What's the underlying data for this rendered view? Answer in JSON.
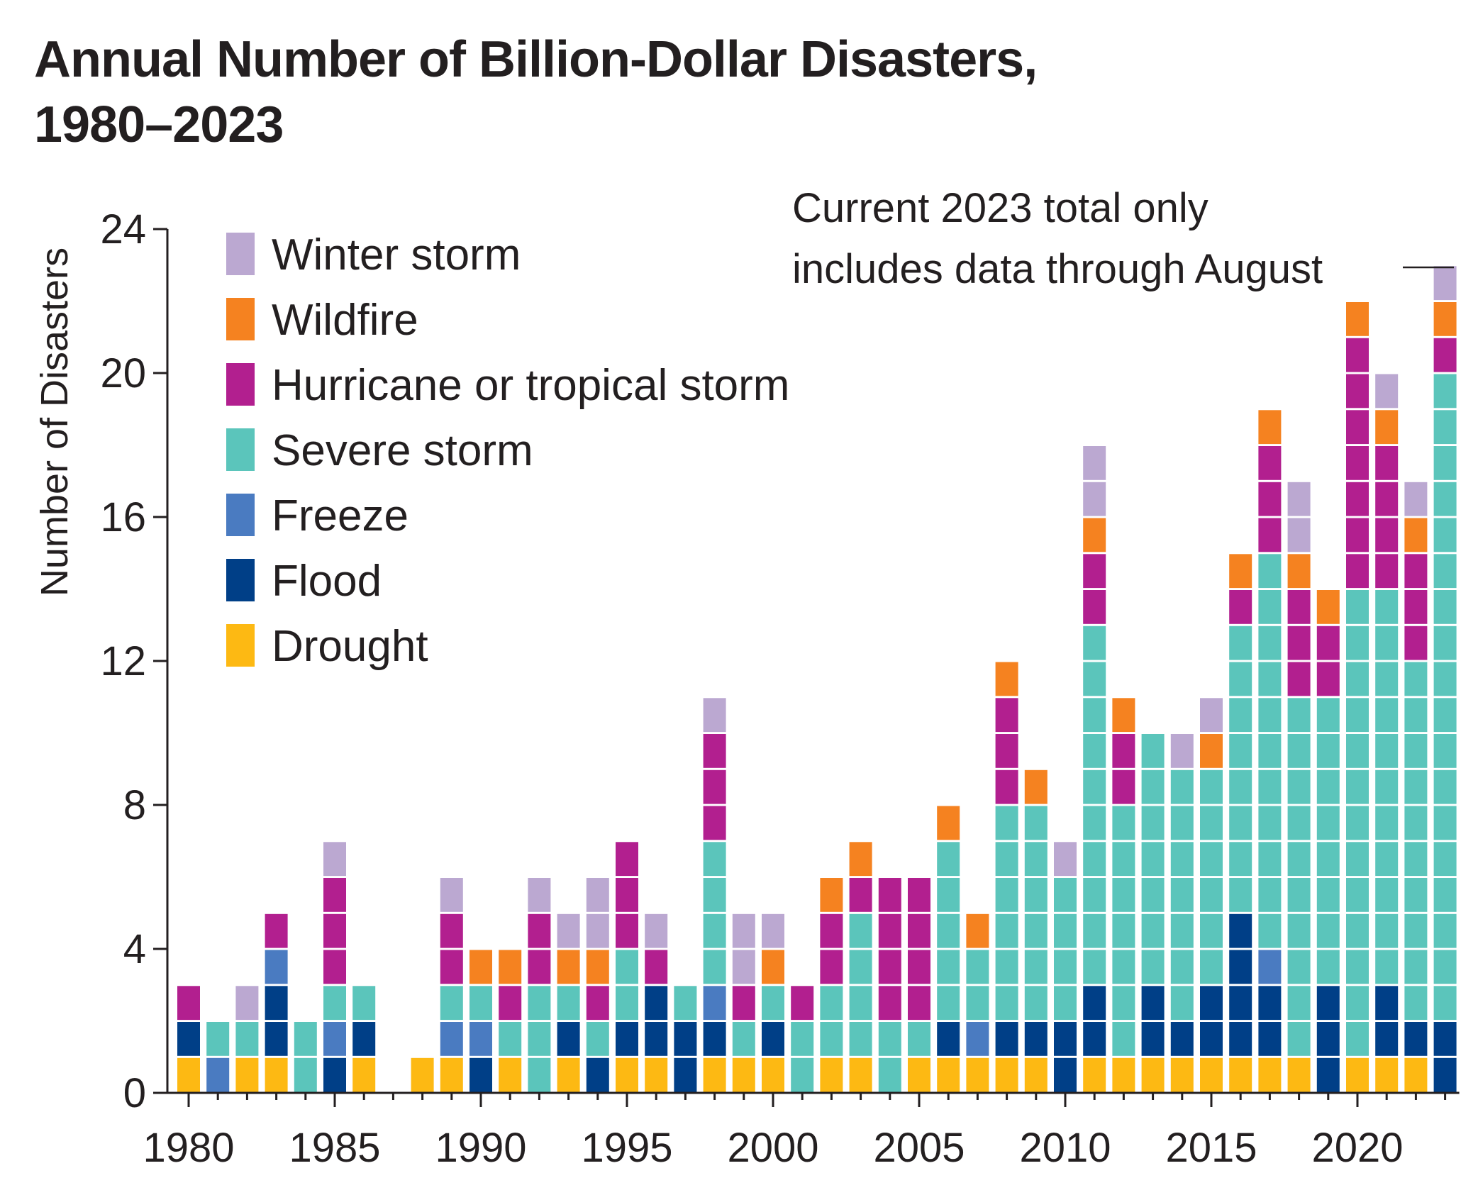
{
  "chart_data": {
    "type": "bar",
    "stacked": true,
    "title": "Annual Number of Billion-Dollar Disasters,\n1980–2023",
    "ylabel": "Number of Disasters",
    "xlabel": "",
    "ylim": [
      0,
      24
    ],
    "yticks": [
      "0",
      "4",
      "8",
      "12",
      "16",
      "20",
      "24"
    ],
    "xticks": [
      "1980",
      "1985",
      "1990",
      "1995",
      "2000",
      "2005",
      "2010",
      "2015",
      "2020"
    ],
    "legend_position": "top-left",
    "annotation": "Current 2023 total only\nincludes data through August",
    "categories": [
      1980,
      1981,
      1982,
      1983,
      1984,
      1985,
      1986,
      1987,
      1988,
      1989,
      1990,
      1991,
      1992,
      1993,
      1994,
      1995,
      1996,
      1997,
      1998,
      1999,
      2000,
      2001,
      2002,
      2003,
      2004,
      2005,
      2006,
      2007,
      2008,
      2009,
      2010,
      2011,
      2012,
      2013,
      2014,
      2015,
      2016,
      2017,
      2018,
      2019,
      2020,
      2021,
      2022,
      2023
    ],
    "series": [
      {
        "name": "Drought",
        "color": "#fdb913",
        "values": [
          1,
          0,
          1,
          1,
          0,
          0,
          1,
          0,
          1,
          1,
          0,
          1,
          0,
          1,
          0,
          1,
          1,
          0,
          1,
          1,
          1,
          0,
          1,
          1,
          0,
          1,
          1,
          1,
          1,
          1,
          0,
          1,
          1,
          1,
          1,
          1,
          1,
          1,
          1,
          0,
          1,
          1,
          1,
          0
        ]
      },
      {
        "name": "Flood",
        "color": "#003f87",
        "values": [
          1,
          0,
          0,
          2,
          0,
          1,
          1,
          0,
          0,
          0,
          1,
          0,
          0,
          1,
          1,
          1,
          2,
          2,
          1,
          0,
          1,
          0,
          0,
          0,
          0,
          0,
          1,
          0,
          1,
          1,
          2,
          2,
          0,
          2,
          1,
          2,
          4,
          2,
          0,
          3,
          0,
          2,
          1,
          2
        ]
      },
      {
        "name": "Freeze",
        "color": "#4a7bc1",
        "values": [
          0,
          1,
          0,
          1,
          0,
          1,
          0,
          0,
          0,
          1,
          1,
          0,
          0,
          0,
          0,
          0,
          0,
          0,
          1,
          0,
          0,
          0,
          0,
          0,
          0,
          0,
          0,
          1,
          0,
          0,
          0,
          0,
          0,
          0,
          0,
          0,
          0,
          1,
          0,
          0,
          0,
          0,
          0,
          0
        ]
      },
      {
        "name": "Severe storm",
        "color": "#5bc5bb",
        "values": [
          0,
          1,
          1,
          0,
          2,
          1,
          1,
          0,
          0,
          1,
          1,
          1,
          3,
          1,
          1,
          2,
          0,
          1,
          4,
          1,
          1,
          2,
          2,
          4,
          2,
          1,
          5,
          2,
          6,
          6,
          4,
          10,
          7,
          7,
          7,
          6,
          8,
          11,
          10,
          8,
          13,
          11,
          10,
          18
        ]
      },
      {
        "name": "Hurricane or tropical storm",
        "color": "#b21f8f",
        "values": [
          1,
          0,
          0,
          1,
          0,
          3,
          0,
          0,
          0,
          2,
          0,
          1,
          2,
          0,
          1,
          3,
          1,
          0,
          3,
          1,
          0,
          1,
          2,
          1,
          4,
          4,
          0,
          0,
          3,
          0,
          0,
          2,
          2,
          0,
          0,
          0,
          1,
          3,
          3,
          2,
          7,
          4,
          3,
          1
        ]
      },
      {
        "name": "Wildfire",
        "color": "#f58220",
        "values": [
          0,
          0,
          0,
          0,
          0,
          0,
          0,
          0,
          0,
          0,
          1,
          1,
          0,
          1,
          1,
          0,
          0,
          0,
          0,
          0,
          1,
          0,
          1,
          1,
          0,
          0,
          1,
          1,
          1,
          1,
          0,
          1,
          1,
          0,
          0,
          1,
          1,
          1,
          1,
          1,
          1,
          1,
          1,
          1
        ]
      },
      {
        "name": "Winter storm",
        "color": "#bba8d1",
        "values": [
          0,
          0,
          1,
          0,
          0,
          1,
          0,
          0,
          0,
          1,
          0,
          0,
          1,
          1,
          2,
          0,
          1,
          0,
          1,
          2,
          1,
          0,
          0,
          0,
          0,
          0,
          0,
          0,
          0,
          0,
          1,
          2,
          0,
          0,
          1,
          1,
          0,
          0,
          2,
          0,
          0,
          1,
          1,
          1
        ]
      }
    ]
  }
}
